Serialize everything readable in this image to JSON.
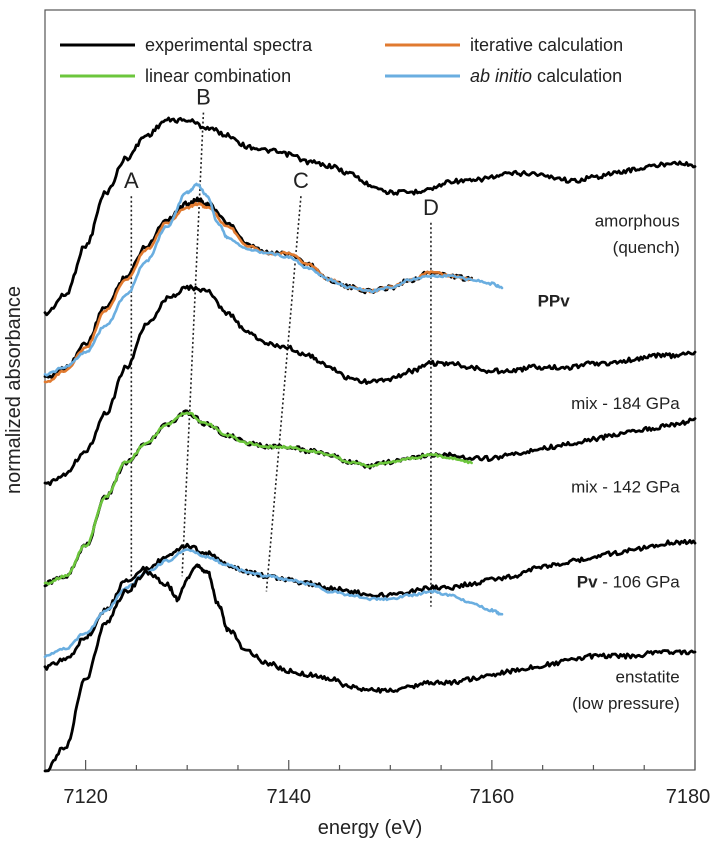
{
  "chart_data": {
    "type": "line",
    "title": "",
    "xlabel": "energy (eV)",
    "ylabel": "normalized absorbance",
    "xlim": [
      7116,
      7180
    ],
    "ylim": [
      0,
      10
    ],
    "xticks": [
      7120,
      7140,
      7160,
      7180
    ],
    "grid": false,
    "legend": {
      "position": "top",
      "entries": [
        {
          "label": "experimental spectra",
          "color": "#000000"
        },
        {
          "label": "iterative calculation",
          "color": "#e07a30"
        },
        {
          "label": "linear combination",
          "color": "#6cc63c"
        },
        {
          "label": "ab initio",
          "suffix": " calculation",
          "color": "#6aaee0"
        }
      ]
    },
    "peaks": [
      {
        "label": "A",
        "top": [
          7124.5,
          7.55
        ],
        "bottom": [
          7124.5,
          2.45
        ]
      },
      {
        "label": "B",
        "top": [
          7131.6,
          8.65
        ],
        "bottom": [
          7129.5,
          2.55
        ]
      },
      {
        "label": "C",
        "top": [
          7141.2,
          7.55
        ],
        "bottom": [
          7137.8,
          2.35
        ]
      },
      {
        "label": "D",
        "top": [
          7154.0,
          7.2
        ],
        "bottom": [
          7154.0,
          2.15
        ]
      }
    ],
    "curve_labels": [
      {
        "text": "amorphous",
        "at": [
          7178.5,
          7.15
        ]
      },
      {
        "text": "(quench)",
        "at": [
          7178.5,
          6.8
        ]
      },
      {
        "text": "PPv",
        "bold": true,
        "at": [
          7164.5,
          6.1
        ]
      },
      {
        "text": "mix - 184 GPa",
        "at": [
          7178.5,
          4.75
        ]
      },
      {
        "text": "mix - 142 GPa",
        "at": [
          7178.5,
          3.65
        ]
      },
      {
        "bold_prefix": "Pv",
        "text": " - 106 GPa",
        "at": [
          7178.5,
          2.4
        ]
      },
      {
        "text": "enstatite",
        "at": [
          7178.5,
          1.15
        ]
      },
      {
        "text": "(low pressure)",
        "at": [
          7178.5,
          0.8
        ]
      }
    ],
    "series": [
      {
        "name": "amorphous (quench)",
        "color": "#000000",
        "x": [
          7116,
          7118,
          7120,
          7122,
          7124,
          7126,
          7128,
          7130,
          7132,
          7134,
          7136,
          7138,
          7140,
          7142,
          7144,
          7146,
          7148,
          7150,
          7152,
          7154,
          7156,
          7158,
          7160,
          7162,
          7164,
          7166,
          7168,
          7170,
          7172,
          7174,
          7176,
          7178,
          7180
        ],
        "y": [
          6.0,
          6.25,
          6.9,
          7.6,
          8.05,
          8.35,
          8.55,
          8.55,
          8.45,
          8.35,
          8.2,
          8.15,
          8.1,
          8.0,
          7.95,
          7.85,
          7.7,
          7.6,
          7.6,
          7.65,
          7.75,
          7.75,
          7.8,
          7.85,
          7.85,
          7.8,
          7.75,
          7.8,
          7.85,
          7.9,
          7.95,
          8.0,
          7.95
        ]
      },
      {
        "name": "PPv experimental",
        "color": "#000000",
        "x": [
          7116,
          7118,
          7120,
          7122,
          7124,
          7126,
          7128,
          7130,
          7131,
          7132,
          7134,
          7136,
          7138,
          7140,
          7142,
          7144,
          7146,
          7148,
          7150,
          7152,
          7154,
          7156,
          7158
        ],
        "y": [
          5.15,
          5.3,
          5.6,
          6.1,
          6.5,
          6.9,
          7.25,
          7.45,
          7.5,
          7.45,
          7.2,
          6.9,
          6.8,
          6.8,
          6.65,
          6.45,
          6.35,
          6.3,
          6.35,
          6.45,
          6.55,
          6.5,
          6.45
        ]
      },
      {
        "name": "iterative calculation",
        "color": "#e07a30",
        "x": [
          7116,
          7118,
          7120,
          7122,
          7124,
          7126,
          7128,
          7130,
          7131,
          7132,
          7134,
          7136,
          7138,
          7140,
          7142,
          7144,
          7146,
          7148,
          7150,
          7152,
          7154,
          7156,
          7158
        ],
        "y": [
          5.1,
          5.25,
          5.55,
          6.05,
          6.45,
          6.85,
          7.2,
          7.4,
          7.45,
          7.4,
          7.15,
          6.9,
          6.8,
          6.8,
          6.65,
          6.45,
          6.35,
          6.3,
          6.35,
          6.45,
          6.55,
          6.5,
          6.45
        ]
      },
      {
        "name": "PPv ab initio calculation",
        "color": "#6aaee0",
        "x": [
          7116,
          7118,
          7120,
          7122,
          7124,
          7126,
          7128,
          7130,
          7131,
          7132,
          7133,
          7134,
          7136,
          7138,
          7140,
          7142,
          7144,
          7146,
          7148,
          7150,
          7152,
          7154,
          7156,
          7158,
          7160,
          7161
        ],
        "y": [
          5.2,
          5.3,
          5.5,
          5.85,
          6.25,
          6.7,
          7.15,
          7.6,
          7.7,
          7.55,
          7.2,
          7.0,
          6.85,
          6.8,
          6.75,
          6.6,
          6.45,
          6.35,
          6.3,
          6.35,
          6.45,
          6.5,
          6.5,
          6.45,
          6.4,
          6.35
        ]
      },
      {
        "name": "mix - 184 GPa",
        "color": "#000000",
        "x": [
          7116,
          7118,
          7120,
          7122,
          7124,
          7126,
          7128,
          7130,
          7132,
          7134,
          7136,
          7138,
          7140,
          7142,
          7144,
          7146,
          7148,
          7150,
          7152,
          7154,
          7156,
          7158,
          7160,
          7162,
          7164,
          7166,
          7168,
          7170,
          7172,
          7174,
          7176,
          7178,
          7180
        ],
        "y": [
          3.75,
          3.9,
          4.2,
          4.7,
          5.3,
          5.85,
          6.2,
          6.35,
          6.3,
          6.0,
          5.75,
          5.6,
          5.55,
          5.45,
          5.3,
          5.15,
          5.1,
          5.15,
          5.25,
          5.35,
          5.35,
          5.3,
          5.25,
          5.25,
          5.3,
          5.3,
          5.3,
          5.35,
          5.35,
          5.4,
          5.45,
          5.45,
          5.5
        ]
      },
      {
        "name": "mix - 142 GPa",
        "color": "#000000",
        "x": [
          7116,
          7118,
          7120,
          7122,
          7124,
          7126,
          7128,
          7130,
          7132,
          7134,
          7136,
          7138,
          7140,
          7142,
          7144,
          7146,
          7148,
          7150,
          7152,
          7154,
          7156,
          7158,
          7160,
          7162,
          7164,
          7166,
          7168,
          7170,
          7172,
          7174,
          7176,
          7178,
          7180
        ],
        "y": [
          2.45,
          2.55,
          2.95,
          3.6,
          4.05,
          4.3,
          4.55,
          4.7,
          4.55,
          4.4,
          4.3,
          4.25,
          4.25,
          4.2,
          4.15,
          4.05,
          4.0,
          4.05,
          4.1,
          4.15,
          4.15,
          4.1,
          4.1,
          4.15,
          4.2,
          4.25,
          4.3,
          4.35,
          4.4,
          4.45,
          4.5,
          4.55,
          4.6
        ]
      },
      {
        "name": "linear combination",
        "color": "#6cc63c",
        "x": [
          7116,
          7118,
          7120,
          7122,
          7124,
          7126,
          7128,
          7130,
          7132,
          7134,
          7136,
          7138,
          7140,
          7142,
          7144,
          7146,
          7148,
          7150,
          7152,
          7154,
          7156,
          7158
        ],
        "y": [
          2.45,
          2.55,
          2.95,
          3.6,
          4.05,
          4.3,
          4.55,
          4.7,
          4.55,
          4.4,
          4.3,
          4.25,
          4.25,
          4.2,
          4.15,
          4.05,
          4.0,
          4.05,
          4.1,
          4.15,
          4.1,
          4.05
        ]
      },
      {
        "name": "Pv - 106 GPa",
        "color": "#000000",
        "x": [
          7116,
          7118,
          7120,
          7122,
          7124,
          7126,
          7128,
          7130,
          7132,
          7134,
          7136,
          7138,
          7140,
          7142,
          7144,
          7146,
          7148,
          7150,
          7152,
          7154,
          7156,
          7158,
          7160,
          7162,
          7164,
          7166,
          7168,
          7170,
          7172,
          7174,
          7176,
          7178,
          7180
        ],
        "y": [
          1.35,
          1.45,
          1.75,
          2.1,
          2.5,
          2.65,
          2.8,
          2.95,
          2.85,
          2.7,
          2.6,
          2.55,
          2.5,
          2.45,
          2.4,
          2.35,
          2.3,
          2.3,
          2.35,
          2.4,
          2.4,
          2.45,
          2.5,
          2.55,
          2.65,
          2.7,
          2.75,
          2.8,
          2.85,
          2.9,
          2.95,
          3.0,
          3.0
        ]
      },
      {
        "name": "Pv ab initio calculation",
        "color": "#6aaee0",
        "x": [
          7116,
          7118,
          7120,
          7122,
          7124,
          7126,
          7128,
          7130,
          7132,
          7134,
          7136,
          7138,
          7140,
          7142,
          7144,
          7146,
          7148,
          7150,
          7152,
          7154,
          7156,
          7158,
          7160,
          7161
        ],
        "y": [
          1.5,
          1.6,
          1.8,
          2.1,
          2.4,
          2.6,
          2.75,
          2.9,
          2.8,
          2.7,
          2.6,
          2.55,
          2.5,
          2.45,
          2.35,
          2.3,
          2.25,
          2.25,
          2.3,
          2.35,
          2.3,
          2.2,
          2.1,
          2.05
        ]
      },
      {
        "name": "enstatite (low pressure)",
        "color": "#000000",
        "x": [
          7116,
          7118,
          7120,
          7122,
          7124,
          7126,
          7128,
          7129,
          7130,
          7131,
          7132,
          7133,
          7134,
          7136,
          7138,
          7140,
          7142,
          7144,
          7146,
          7148,
          7150,
          7152,
          7154,
          7156,
          7158,
          7160,
          7162,
          7164,
          7166,
          7168,
          7170,
          7172,
          7174,
          7176,
          7178,
          7180
        ],
        "y": [
          0.0,
          0.3,
          1.2,
          1.95,
          2.35,
          2.6,
          2.45,
          2.25,
          2.5,
          2.7,
          2.6,
          2.2,
          1.85,
          1.55,
          1.4,
          1.3,
          1.25,
          1.2,
          1.1,
          1.05,
          1.05,
          1.1,
          1.15,
          1.15,
          1.2,
          1.25,
          1.3,
          1.35,
          1.4,
          1.45,
          1.5,
          1.5,
          1.5,
          1.55,
          1.55,
          1.55
        ]
      }
    ]
  }
}
